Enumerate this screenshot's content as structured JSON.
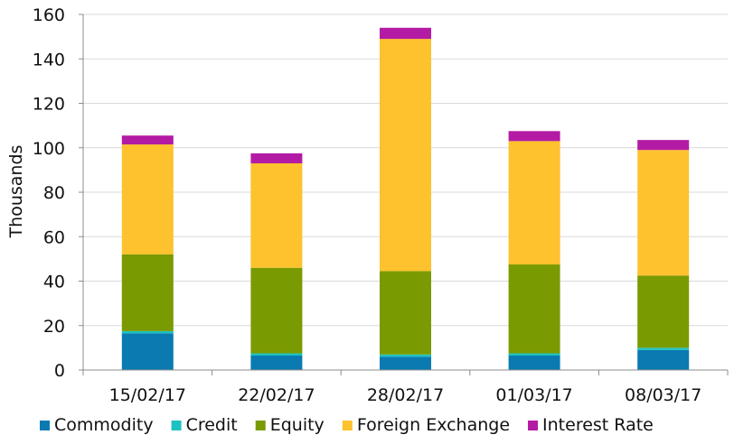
{
  "chart_data": {
    "type": "bar",
    "stacked": true,
    "categories": [
      "15/02/17",
      "22/02/17",
      "28/02/17",
      "01/03/17",
      "08/03/17"
    ],
    "series": [
      {
        "name": "Commodity",
        "color": "#0a7ab1",
        "values": [
          16.5,
          6.5,
          6,
          6.5,
          9
        ]
      },
      {
        "name": "Credit",
        "color": "#1cc2c0",
        "values": [
          1,
          1,
          1,
          1,
          1
        ]
      },
      {
        "name": "Equity",
        "color": "#7a9a01",
        "values": [
          34.5,
          38.5,
          37.5,
          40,
          32.5
        ]
      },
      {
        "name": "Foreign Exchange",
        "color": "#fdc22d",
        "values": [
          49.5,
          47,
          104.5,
          55.5,
          56.5
        ]
      },
      {
        "name": "Interest Rate",
        "color": "#b41ba5",
        "values": [
          4,
          4.5,
          5,
          4.5,
          4.5
        ]
      }
    ],
    "xlabel": "",
    "ylabel": "Thousands",
    "ylim": [
      0,
      160
    ],
    "yticks": [
      0,
      20,
      40,
      60,
      80,
      100,
      120,
      140,
      160
    ],
    "grid": true,
    "legend_position": "bottom"
  }
}
